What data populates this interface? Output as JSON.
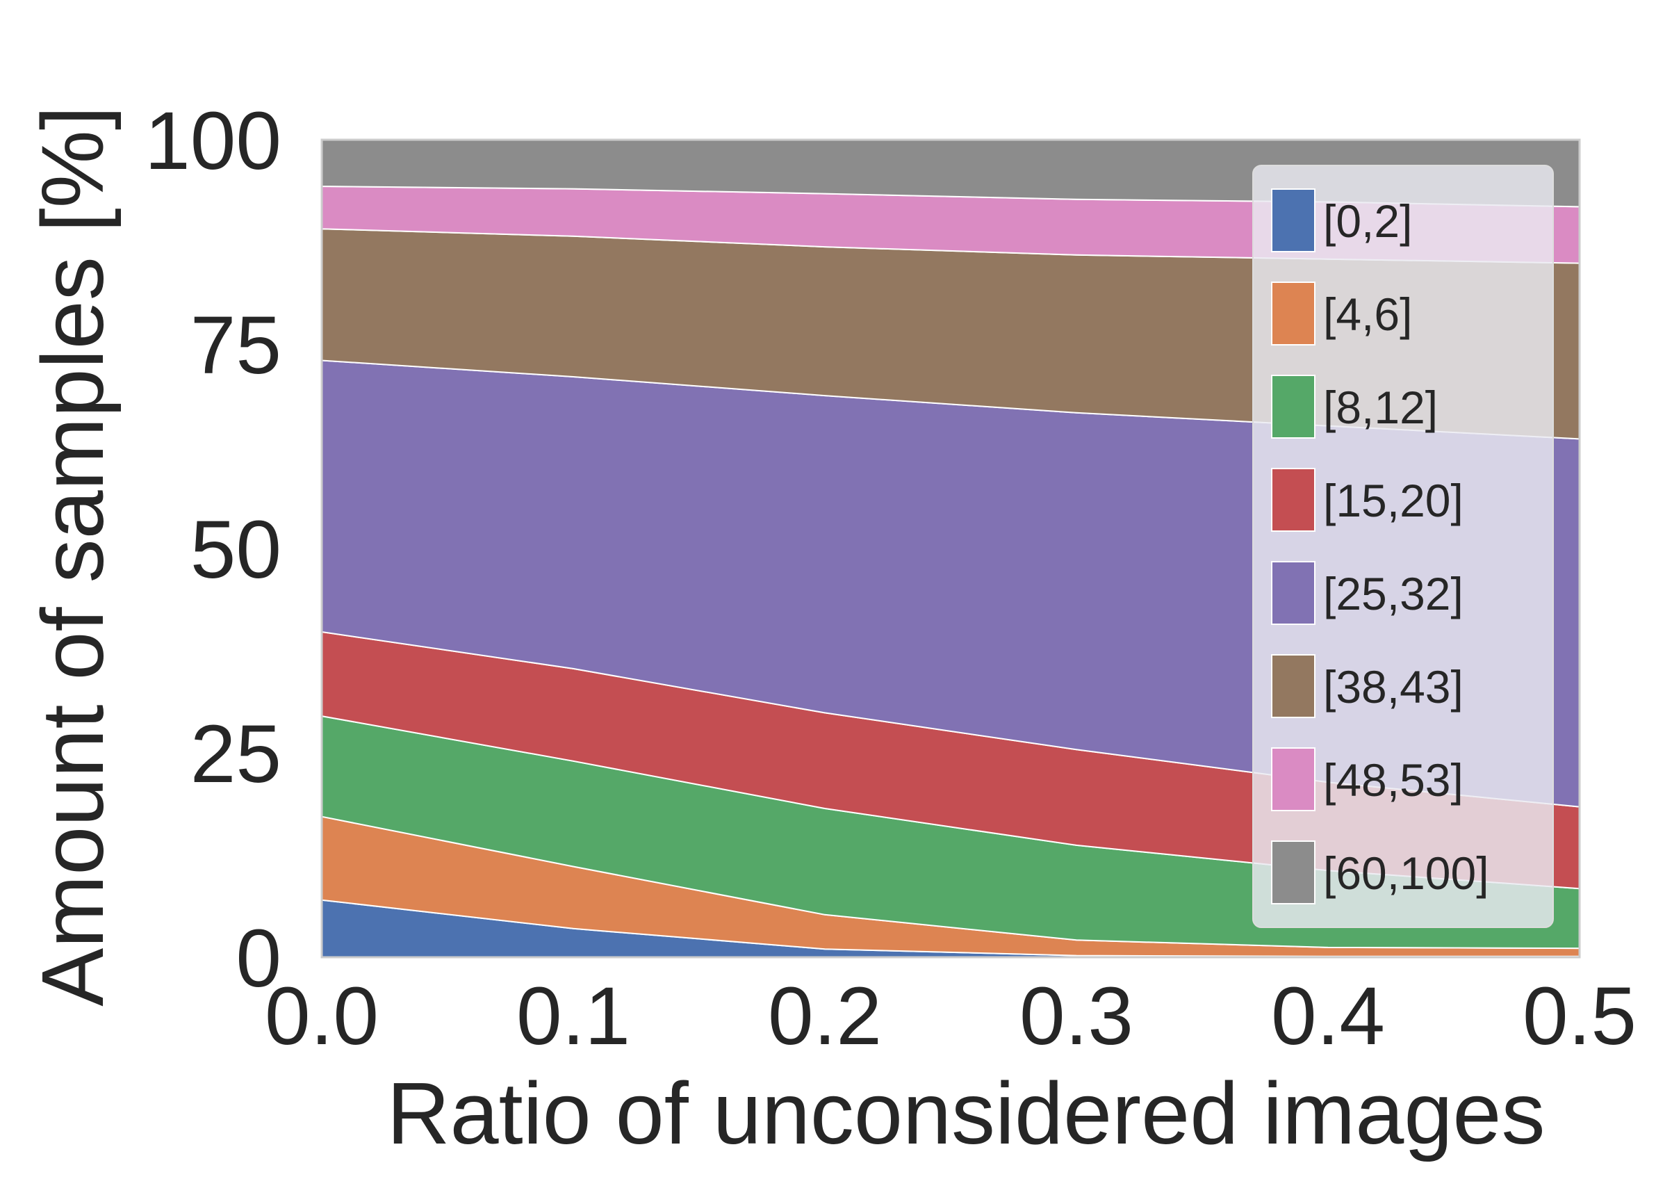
{
  "chart_data": {
    "type": "area",
    "stacked": true,
    "title": "",
    "xlabel": "Ratio of unconsidered images",
    "ylabel": "Amount of samples [%]",
    "xlim": [
      0.0,
      0.5
    ],
    "ylim": [
      0,
      100
    ],
    "x": [
      0.0,
      0.1,
      0.2,
      0.3,
      0.4,
      0.5
    ],
    "x_ticks": [
      "0.0",
      "0.1",
      "0.2",
      "0.3",
      "0.4",
      "0.5"
    ],
    "y_ticks": [
      "0",
      "25",
      "50",
      "75",
      "100"
    ],
    "y_tick_values": [
      0,
      25,
      50,
      75,
      100
    ],
    "grid": false,
    "legend_position": "upper-right",
    "series": [
      {
        "name": "[0,2]",
        "color": "#4c72b0",
        "values": [
          7.0,
          3.5,
          1.0,
          0.2,
          0.1,
          0.1
        ]
      },
      {
        "name": "[4,6]",
        "color": "#dd8452",
        "values": [
          10.2,
          7.6,
          4.2,
          1.9,
          1.1,
          1.0
        ]
      },
      {
        "name": "[8,12]",
        "color": "#55a868",
        "values": [
          12.3,
          12.9,
          13.0,
          11.6,
          9.4,
          7.3
        ]
      },
      {
        "name": "[15,20]",
        "color": "#c44e52",
        "values": [
          10.3,
          11.3,
          11.7,
          11.7,
          10.8,
          10.0
        ]
      },
      {
        "name": "[25,32]",
        "color": "#8172b3",
        "values": [
          33.2,
          35.7,
          38.8,
          41.2,
          43.6,
          45.0
        ]
      },
      {
        "name": "[38,43]",
        "color": "#937860",
        "values": [
          16.1,
          17.2,
          18.2,
          19.3,
          20.4,
          21.5
        ]
      },
      {
        "name": "[48,53]",
        "color": "#da8bc3",
        "values": [
          5.2,
          5.8,
          6.5,
          6.8,
          7.0,
          6.9
        ]
      },
      {
        "name": "[60,100]",
        "color": "#8c8c8c",
        "values": [
          5.7,
          6.0,
          6.6,
          7.3,
          7.6,
          8.2
        ]
      }
    ]
  }
}
